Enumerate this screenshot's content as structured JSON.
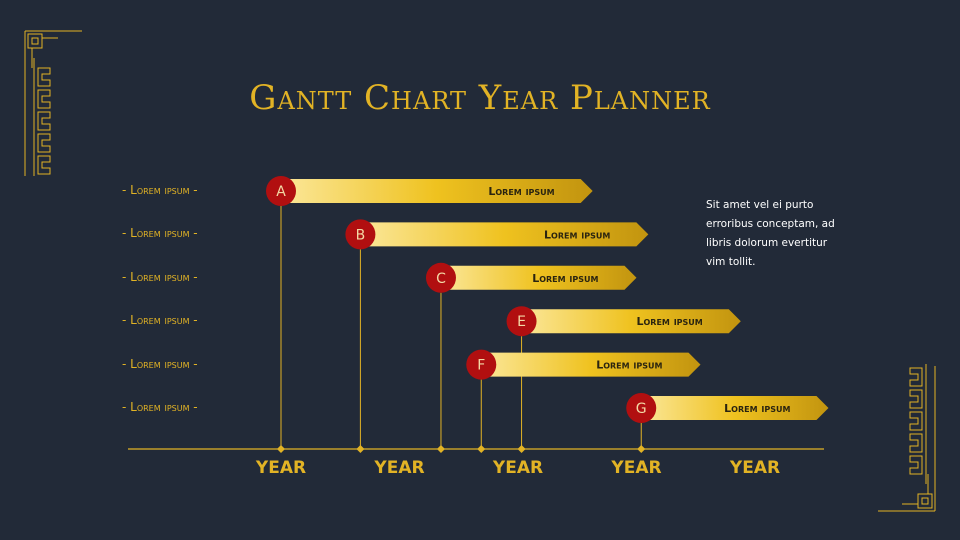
{
  "slide": {
    "title": "Gantt Chart Year Planner",
    "side_text": "Sit amet vel ei purto erroribus conceptam, ad libris dolorum evertitur vim tollit."
  },
  "colors": {
    "background": "#222a38",
    "gold": "#e2b325",
    "marker_red": "#b10f10",
    "bar_light": "#fbe79a",
    "bar_dark": "#c5970f"
  },
  "chart_data": {
    "type": "bar",
    "orientation": "horizontal-gantt",
    "x_tick_labels": [
      "YEAR",
      "YEAR",
      "YEAR",
      "YEAR",
      "YEAR"
    ],
    "xlim": [
      0,
      5
    ],
    "row_labels": [
      "- Lorem ipsum -",
      "- Lorem ipsum -",
      "- Lorem ipsum -",
      "- Lorem ipsum -",
      "- Lorem ipsum -",
      "- Lorem ipsum -"
    ],
    "tasks": [
      {
        "marker": "A",
        "label": "Lorem ipsum",
        "start": 0.0,
        "end": 2.63
      },
      {
        "marker": "B",
        "label": "Lorem ipsum",
        "start": 0.67,
        "end": 3.1
      },
      {
        "marker": "C",
        "label": "Lorem ipsum",
        "start": 1.35,
        "end": 3.0
      },
      {
        "marker": "E",
        "label": "Lorem ipsum",
        "start": 2.03,
        "end": 3.88
      },
      {
        "marker": "F",
        "label": "Lorem ipsum",
        "start": 1.69,
        "end": 3.54
      },
      {
        "marker": "G",
        "label": "Lorem ipsum",
        "start": 3.04,
        "end": 4.62
      }
    ],
    "grid": false
  }
}
